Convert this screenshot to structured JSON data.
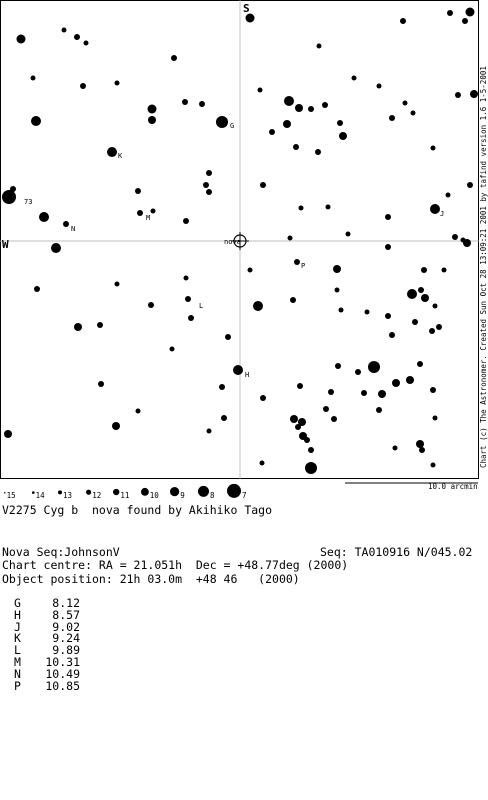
{
  "chart": {
    "north_label": "S",
    "west_label": "W",
    "nova_label": "nova",
    "labels": {
      "G": "G",
      "H": "H",
      "J": "J",
      "K": "K",
      "L": "L",
      "M": "M",
      "N": "N",
      "P": "P",
      "n73": "73"
    },
    "credit": "Chart (c) The Astronomer. Created Sun Oct 28 13:09:21 2001 by tafind version 1.6 1-5-2001",
    "scale_label": "10.0 arcmin",
    "mag_legend": [
      "15",
      "14",
      "13",
      "12",
      "11",
      "10",
      "9",
      "8",
      "7"
    ]
  },
  "info": {
    "line1": "V2275 Cyg b  nova found by Akihiko Tago",
    "seq_left": "Nova Seq:JohnsonV",
    "seq_right": "Seq: TA010916 N/045.02",
    "line3": "Chart centre: RA = 21.051h  Dec = +48.77deg (2000)",
    "line4": "Object position: 21h 03.0m  +48 46   (2000)"
  },
  "comparison_stars": [
    {
      "label": "G",
      "mag": "8.12"
    },
    {
      "label": "H",
      "mag": "8.57"
    },
    {
      "label": "J",
      "mag": "9.02"
    },
    {
      "label": "K",
      "mag": "9.24"
    },
    {
      "label": "L",
      "mag": "9.89"
    },
    {
      "label": "M",
      "mag": "10.31"
    },
    {
      "label": "N",
      "mag": "10.49"
    },
    {
      "label": "P",
      "mag": "10.85"
    }
  ]
}
